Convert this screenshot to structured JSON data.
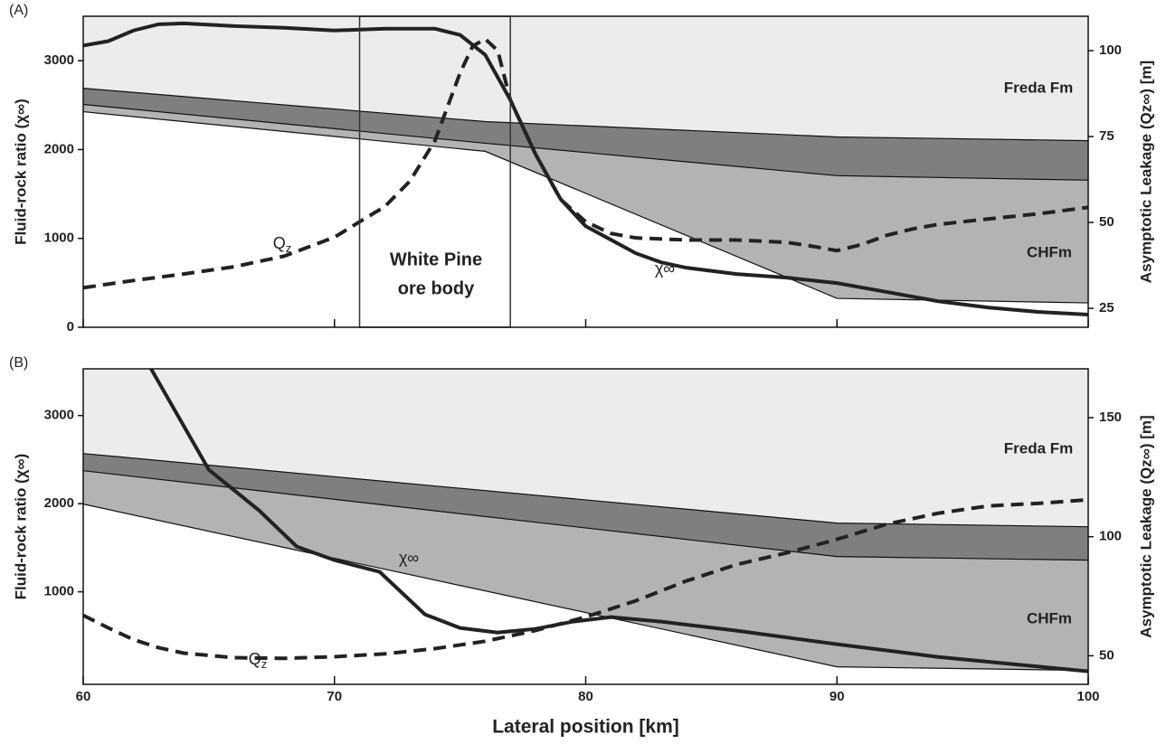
{
  "chart_data": [
    {
      "type": "line",
      "panel": "(A)",
      "ylabel": "Fluid-rock ratio (χ∞)",
      "y2label": "Asymptotic Leakage (Qz∞) [m]",
      "xlim": [
        60,
        100
      ],
      "xticks": [
        60,
        70,
        80,
        90,
        100
      ],
      "show_xtick_labels": false,
      "ylim": [
        0,
        3500
      ],
      "yticks": [
        0,
        1000,
        2000,
        3000
      ],
      "y2lim": [
        19.5,
        110
      ],
      "y2ticks": [
        25,
        50,
        75,
        100
      ],
      "layers": [
        {
          "label": "Freda Fm",
          "color": "#ececec"
        },
        {
          "color": "#7f7f7f"
        },
        {
          "label": "CHFm",
          "color": "#b3b3b3"
        }
      ],
      "boundaries": [
        {
          "x": [
            60,
            76,
            90,
            100
          ],
          "values": [
            2690,
            2315,
            2142,
            2100
          ]
        },
        {
          "x": [
            60,
            76,
            90,
            100
          ],
          "values": [
            2508,
            2071,
            1706,
            1655
          ]
        },
        {
          "x": [
            60,
            76,
            90,
            100
          ],
          "values": [
            2426,
            1980,
            325,
            274
          ]
        }
      ],
      "highlight": {
        "label": [
          "White Pine",
          "ore body"
        ],
        "x": [
          71,
          77
        ]
      },
      "series": [
        {
          "name": "χ∞",
          "style": "solid",
          "color": "#222222",
          "x": [
            60,
            61,
            62,
            63,
            64,
            66,
            68,
            70,
            72,
            74,
            75,
            76,
            77,
            78,
            79,
            80,
            81,
            82,
            83,
            84,
            86,
            88,
            90,
            92,
            94,
            96,
            98,
            100
          ],
          "values": [
            3170,
            3220,
            3340,
            3410,
            3420,
            3390,
            3370,
            3340,
            3360,
            3360,
            3290,
            3066,
            2558,
            1949,
            1442,
            1137,
            985,
            832,
            731,
            670,
            599,
            558,
            497,
            396,
            294,
            223,
            173,
            142
          ]
        },
        {
          "name": "Q",
          "name_sub": "z",
          "axis": "y2",
          "style": "dashed",
          "color": "#222222",
          "x": [
            60,
            62,
            64,
            66,
            68,
            70,
            71,
            72,
            73,
            74,
            75,
            75.5,
            76,
            76.5,
            77,
            78,
            79,
            80,
            81,
            82,
            84,
            86,
            88,
            89,
            90,
            91,
            92,
            93,
            94,
            96,
            98,
            100
          ],
          "values": [
            31.0,
            33.1,
            35.0,
            37.1,
            40.2,
            45.7,
            50.2,
            54.6,
            62.0,
            73.8,
            93.5,
            101.3,
            103.4,
            100.0,
            85.6,
            69.9,
            56.7,
            50.2,
            46.8,
            45.5,
            44.9,
            44.9,
            44.2,
            43.1,
            41.8,
            43.6,
            46.3,
            48.1,
            49.4,
            51.0,
            52.5,
            54.4
          ]
        }
      ]
    },
    {
      "type": "line",
      "panel": "(B)",
      "ylabel": "Fluid-rock ratio (χ∞)",
      "y2label": "Asymptotic Leakage (Qz∞) [m]",
      "xlabel": "Lateral position [km]",
      "xlim": [
        60,
        100
      ],
      "xticks": [
        60,
        70,
        80,
        90,
        100
      ],
      "show_xtick_labels": true,
      "ylim": [
        -50,
        3530
      ],
      "yticks": [
        1000,
        2000,
        3000
      ],
      "y2lim": [
        38,
        170.5
      ],
      "y2ticks": [
        50,
        100,
        150
      ],
      "layers": [
        {
          "label": "Freda Fm",
          "color": "#ececec"
        },
        {
          "color": "#7f7f7f"
        },
        {
          "label": "CHFm",
          "color": "#b3b3b3"
        }
      ],
      "boundaries": [
        {
          "x": [
            60,
            90,
            100
          ],
          "values": [
            2569,
            1780,
            1738
          ]
        },
        {
          "x": [
            60,
            90,
            100
          ],
          "values": [
            2374,
            1400,
            1359
          ]
        },
        {
          "x": [
            60,
            90,
            100
          ],
          "values": [
            1995,
            149,
            108
          ]
        }
      ],
      "series": [
        {
          "name": "χ∞",
          "style": "solid",
          "color": "#222222",
          "x": [
            62.7,
            65,
            67,
            68.5,
            70,
            71.8,
            73.6,
            75,
            76.5,
            78,
            79.5,
            81,
            83,
            86,
            90,
            94,
            100
          ],
          "values": [
            3530,
            2385,
            1923,
            1513,
            1359,
            1226,
            744,
            590,
            538,
            579,
            662,
            713,
            662,
            559,
            405,
            262,
            97
          ]
        },
        {
          "name": "Q",
          "name_sub": "z",
          "axis": "y2",
          "style": "dashed",
          "color": "#222222",
          "x": [
            60,
            61,
            62,
            63,
            64,
            66,
            68,
            70,
            72,
            74,
            76,
            78,
            80,
            82,
            84,
            86,
            88,
            90,
            92,
            94,
            96,
            98,
            100
          ],
          "values": [
            67.0,
            61.7,
            56.8,
            53.4,
            51.1,
            49.2,
            48.9,
            49.6,
            50.8,
            53.0,
            56.1,
            60.6,
            66.3,
            73.1,
            81.4,
            88.3,
            93.2,
            98.9,
            105.3,
            109.8,
            112.9,
            114.0,
            115.5
          ]
        }
      ]
    }
  ]
}
